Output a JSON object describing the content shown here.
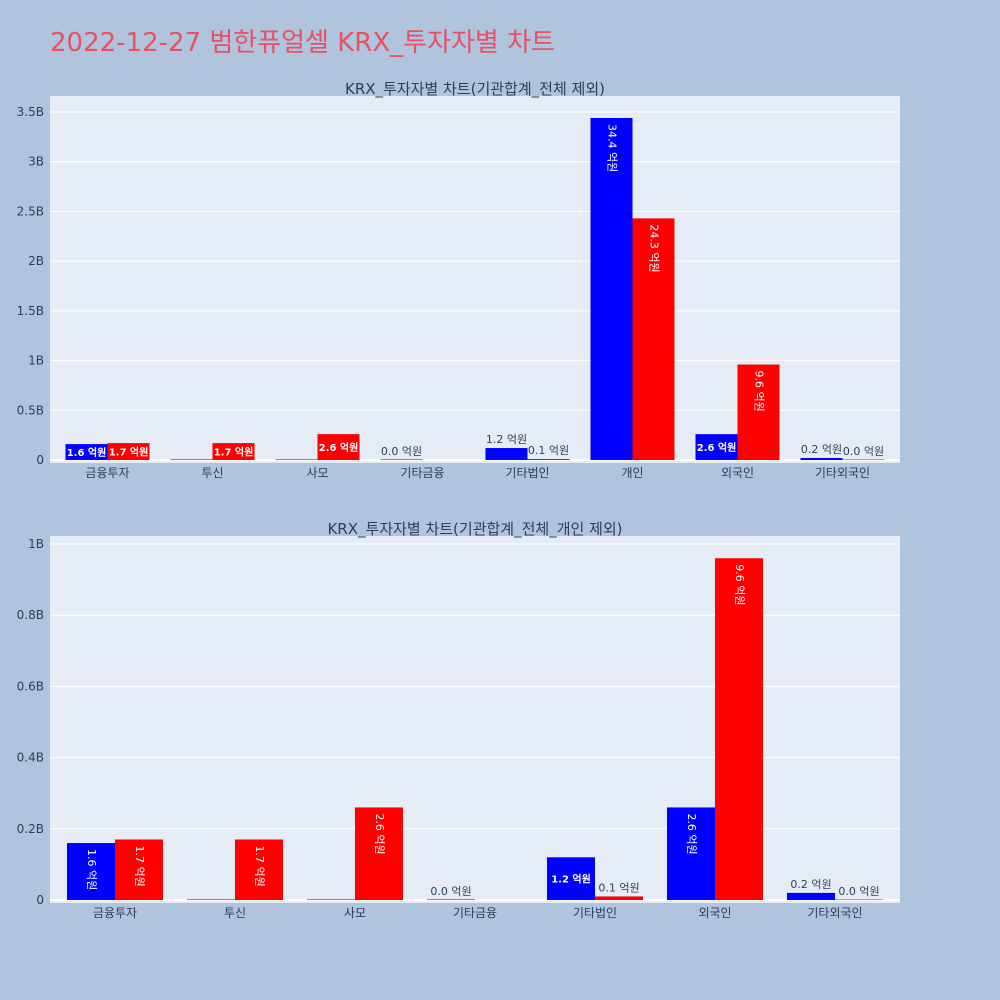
{
  "title": "2022-12-27 범한퓨얼셀 KRX_투자자별 차트",
  "colors": {
    "buy": "#0000ff",
    "sell": "#ff0000",
    "title": "#e8515f",
    "plot_bg": "#e5ecf6",
    "paper_bg": "#b0c4de"
  },
  "chart_data": [
    {
      "type": "bar",
      "title": "KRX_투자자별 차트(기관합계_전체 제외)",
      "categories": [
        "금융투자",
        "투신",
        "사모",
        "기타금융",
        "기타법인",
        "개인",
        "외국인",
        "기타외국인"
      ],
      "yticks": [
        "0",
        "0.5B",
        "1B",
        "1.5B",
        "2B",
        "2.5B",
        "3B",
        "3.5B"
      ],
      "ylim": [
        0,
        3.5
      ],
      "series": [
        {
          "color": "#0000ff",
          "values": [
            0.16,
            0,
            0,
            0.0,
            0.12,
            3.44,
            0.26,
            0.02
          ],
          "labels": [
            "1.6 억원",
            null,
            null,
            "0.0 억원",
            "1.2 억원",
            "34.4 억원",
            "2.6 억원",
            "0.2 억원"
          ]
        },
        {
          "color": "#ff0000",
          "values": [
            0.17,
            0.17,
            0.26,
            null,
            0.01,
            2.43,
            0.96,
            0.0
          ],
          "labels": [
            "1.7 억원",
            "1.7 억원",
            "2.6 억원",
            null,
            "0.1 억원",
            "24.3 억원",
            "9.6 억원",
            "0.0 억원"
          ]
        }
      ]
    },
    {
      "type": "bar",
      "title": "KRX_투자자별 차트(기관합계_전체_개인 제외)",
      "categories": [
        "금융투자",
        "투신",
        "사모",
        "기타금융",
        "기타법인",
        "외국인",
        "기타외국인"
      ],
      "yticks": [
        "0",
        "0.2B",
        "0.4B",
        "0.6B",
        "0.8B",
        "1B"
      ],
      "ylim": [
        0,
        1.0
      ],
      "series": [
        {
          "color": "#0000ff",
          "values": [
            0.16,
            0,
            0,
            0.0,
            0.12,
            0.26,
            0.02
          ],
          "labels": [
            "1.6 억원",
            null,
            null,
            "0.0 억원",
            "1.2 억원",
            "2.6 억원",
            "0.2 억원"
          ]
        },
        {
          "color": "#ff0000",
          "values": [
            0.17,
            0.17,
            0.26,
            null,
            0.01,
            0.96,
            0.0
          ],
          "labels": [
            "1.7 억원",
            "1.7 억원",
            "2.6 억원",
            null,
            "0.1 억원",
            "9.6 억원",
            "0.0 억원"
          ]
        }
      ]
    }
  ]
}
